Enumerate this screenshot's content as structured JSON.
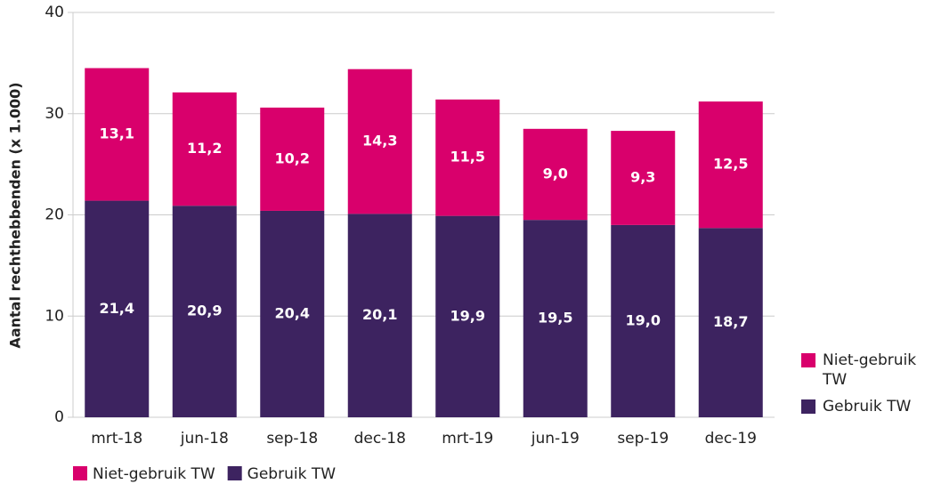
{
  "chart_data": {
    "type": "stacked_bar",
    "y_label": "Aantal rechthebbenden (x 1.000)",
    "categories": [
      "mrt-18",
      "jun-18",
      "sep-18",
      "dec-18",
      "mrt-19",
      "jun-19",
      "sep-19",
      "dec-19"
    ],
    "series": [
      {
        "name": "Niet-gebruik TW",
        "color": "#d9006c",
        "values": [
          13.1,
          11.2,
          10.2,
          14.3,
          11.5,
          9.0,
          9.3,
          12.5
        ],
        "value_labels": [
          "13,1",
          "11,2",
          "10,2",
          "14,3",
          "11,5",
          "9,0",
          "9,3",
          "12,5"
        ]
      },
      {
        "name": "Gebruik TW",
        "color": "#3d2360",
        "values": [
          21.4,
          20.9,
          20.4,
          20.1,
          19.9,
          19.5,
          19.0,
          18.7
        ],
        "value_labels": [
          "21,4",
          "20,9",
          "20,4",
          "20,1",
          "19,9",
          "19,5",
          "19,0",
          "18,7"
        ]
      }
    ],
    "ylim": [
      0,
      40
    ],
    "yticks": [
      0,
      10,
      20,
      30,
      40
    ],
    "grid": true
  }
}
